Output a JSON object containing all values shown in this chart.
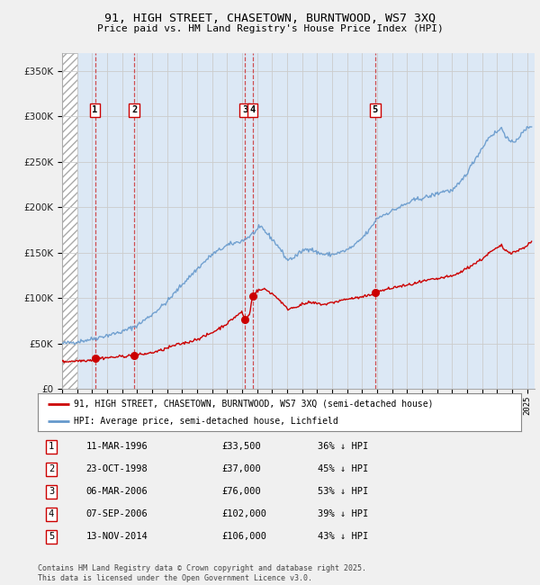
{
  "title_line1": "91, HIGH STREET, CHASETOWN, BURNTWOOD, WS7 3XQ",
  "title_line2": "Price paid vs. HM Land Registry's House Price Index (HPI)",
  "ylabel_values": [
    0,
    50000,
    100000,
    150000,
    200000,
    250000,
    300000,
    350000
  ],
  "ylim": [
    0,
    370000
  ],
  "xlim_start": 1994.0,
  "xlim_end": 2025.5,
  "transactions": [
    {
      "label": "1",
      "date_num": 1996.19,
      "price": 33500
    },
    {
      "label": "2",
      "date_num": 1998.81,
      "price": 37000
    },
    {
      "label": "3",
      "date_num": 2006.18,
      "price": 76000
    },
    {
      "label": "4",
      "date_num": 2006.69,
      "price": 102000
    },
    {
      "label": "5",
      "date_num": 2014.87,
      "price": 106000
    }
  ],
  "transaction_table": [
    {
      "num": "1",
      "date": "11-MAR-1996",
      "price": "£33,500",
      "pct": "36% ↓ HPI"
    },
    {
      "num": "2",
      "date": "23-OCT-1998",
      "price": "£37,000",
      "pct": "45% ↓ HPI"
    },
    {
      "num": "3",
      "date": "06-MAR-2006",
      "price": "£76,000",
      "pct": "53% ↓ HPI"
    },
    {
      "num": "4",
      "date": "07-SEP-2006",
      "price": "£102,000",
      "pct": "39% ↓ HPI"
    },
    {
      "num": "5",
      "date": "13-NOV-2014",
      "price": "£106,000",
      "pct": "43% ↓ HPI"
    }
  ],
  "legend_house_label": "91, HIGH STREET, CHASETOWN, BURNTWOOD, WS7 3XQ (semi-detached house)",
  "legend_hpi_label": "HPI: Average price, semi-detached house, Lichfield",
  "footer": "Contains HM Land Registry data © Crown copyright and database right 2025.\nThis data is licensed under the Open Government Licence v3.0.",
  "house_color": "#cc0000",
  "hpi_color": "#6699cc",
  "hatched_region_end": 1995.0,
  "background_color": "#dce8f5",
  "grid_color": "#cccccc",
  "hpi_keypoints": [
    [
      1994.0,
      50000
    ],
    [
      1995.0,
      52000
    ],
    [
      1996.0,
      55000
    ],
    [
      1997.0,
      59000
    ],
    [
      1998.0,
      63000
    ],
    [
      1999.0,
      70000
    ],
    [
      2000.0,
      82000
    ],
    [
      2001.0,
      96000
    ],
    [
      2002.0,
      115000
    ],
    [
      2003.0,
      132000
    ],
    [
      2004.0,
      148000
    ],
    [
      2005.0,
      158000
    ],
    [
      2006.0,
      163000
    ],
    [
      2006.5,
      168000
    ],
    [
      2007.0,
      175000
    ],
    [
      2007.3,
      178000
    ],
    [
      2007.5,
      174000
    ],
    [
      2008.0,
      165000
    ],
    [
      2008.5,
      155000
    ],
    [
      2009.0,
      142000
    ],
    [
      2009.5,
      145000
    ],
    [
      2010.0,
      152000
    ],
    [
      2010.5,
      155000
    ],
    [
      2011.0,
      150000
    ],
    [
      2011.5,
      148000
    ],
    [
      2012.0,
      148000
    ],
    [
      2012.5,
      150000
    ],
    [
      2013.0,
      153000
    ],
    [
      2013.5,
      158000
    ],
    [
      2014.0,
      166000
    ],
    [
      2014.5,
      175000
    ],
    [
      2015.0,
      188000
    ],
    [
      2015.5,
      192000
    ],
    [
      2016.0,
      196000
    ],
    [
      2016.5,
      200000
    ],
    [
      2017.0,
      204000
    ],
    [
      2017.5,
      208000
    ],
    [
      2018.0,
      210000
    ],
    [
      2018.5,
      212000
    ],
    [
      2019.0,
      215000
    ],
    [
      2019.5,
      218000
    ],
    [
      2020.0,
      218000
    ],
    [
      2020.5,
      226000
    ],
    [
      2021.0,
      238000
    ],
    [
      2021.5,
      252000
    ],
    [
      2022.0,
      265000
    ],
    [
      2022.5,
      278000
    ],
    [
      2023.0,
      283000
    ],
    [
      2023.3,
      287000
    ],
    [
      2023.7,
      275000
    ],
    [
      2024.0,
      270000
    ],
    [
      2024.5,
      278000
    ],
    [
      2025.0,
      287000
    ],
    [
      2025.3,
      290000
    ]
  ],
  "house_keypoints": [
    [
      1994.0,
      30000
    ],
    [
      1994.5,
      30500
    ],
    [
      1995.0,
      31000
    ],
    [
      1995.5,
      31500
    ],
    [
      1996.0,
      32000
    ],
    [
      1996.19,
      33500
    ],
    [
      1996.5,
      34000
    ],
    [
      1997.0,
      34500
    ],
    [
      1997.5,
      35000
    ],
    [
      1998.0,
      36000
    ],
    [
      1998.81,
      37000
    ],
    [
      1999.0,
      37500
    ],
    [
      1999.5,
      38500
    ],
    [
      2000.0,
      40000
    ],
    [
      2000.5,
      42000
    ],
    [
      2001.0,
      45000
    ],
    [
      2001.5,
      48000
    ],
    [
      2002.0,
      50000
    ],
    [
      2002.5,
      52000
    ],
    [
      2003.0,
      55000
    ],
    [
      2003.5,
      58000
    ],
    [
      2004.0,
      62000
    ],
    [
      2004.5,
      67000
    ],
    [
      2005.0,
      72000
    ],
    [
      2005.5,
      79000
    ],
    [
      2006.0,
      85000
    ],
    [
      2006.18,
      76000
    ],
    [
      2006.5,
      82000
    ],
    [
      2006.69,
      102000
    ],
    [
      2007.0,
      108000
    ],
    [
      2007.5,
      110000
    ],
    [
      2008.0,
      105000
    ],
    [
      2008.5,
      98000
    ],
    [
      2009.0,
      88000
    ],
    [
      2009.5,
      90000
    ],
    [
      2010.0,
      93000
    ],
    [
      2010.5,
      95000
    ],
    [
      2011.0,
      94000
    ],
    [
      2011.5,
      93000
    ],
    [
      2012.0,
      95000
    ],
    [
      2012.5,
      97000
    ],
    [
      2013.0,
      99000
    ],
    [
      2013.5,
      100000
    ],
    [
      2014.0,
      101000
    ],
    [
      2014.5,
      103000
    ],
    [
      2014.87,
      106000
    ],
    [
      2015.0,
      107000
    ],
    [
      2015.5,
      109000
    ],
    [
      2016.0,
      111000
    ],
    [
      2016.5,
      113000
    ],
    [
      2017.0,
      114000
    ],
    [
      2017.5,
      116000
    ],
    [
      2018.0,
      118000
    ],
    [
      2018.5,
      120000
    ],
    [
      2019.0,
      121000
    ],
    [
      2019.5,
      123000
    ],
    [
      2020.0,
      124000
    ],
    [
      2020.5,
      128000
    ],
    [
      2021.0,
      133000
    ],
    [
      2021.5,
      138000
    ],
    [
      2022.0,
      143000
    ],
    [
      2022.5,
      150000
    ],
    [
      2023.0,
      155000
    ],
    [
      2023.3,
      158000
    ],
    [
      2023.5,
      153000
    ],
    [
      2024.0,
      150000
    ],
    [
      2024.5,
      153000
    ],
    [
      2025.0,
      158000
    ],
    [
      2025.3,
      162000
    ]
  ]
}
